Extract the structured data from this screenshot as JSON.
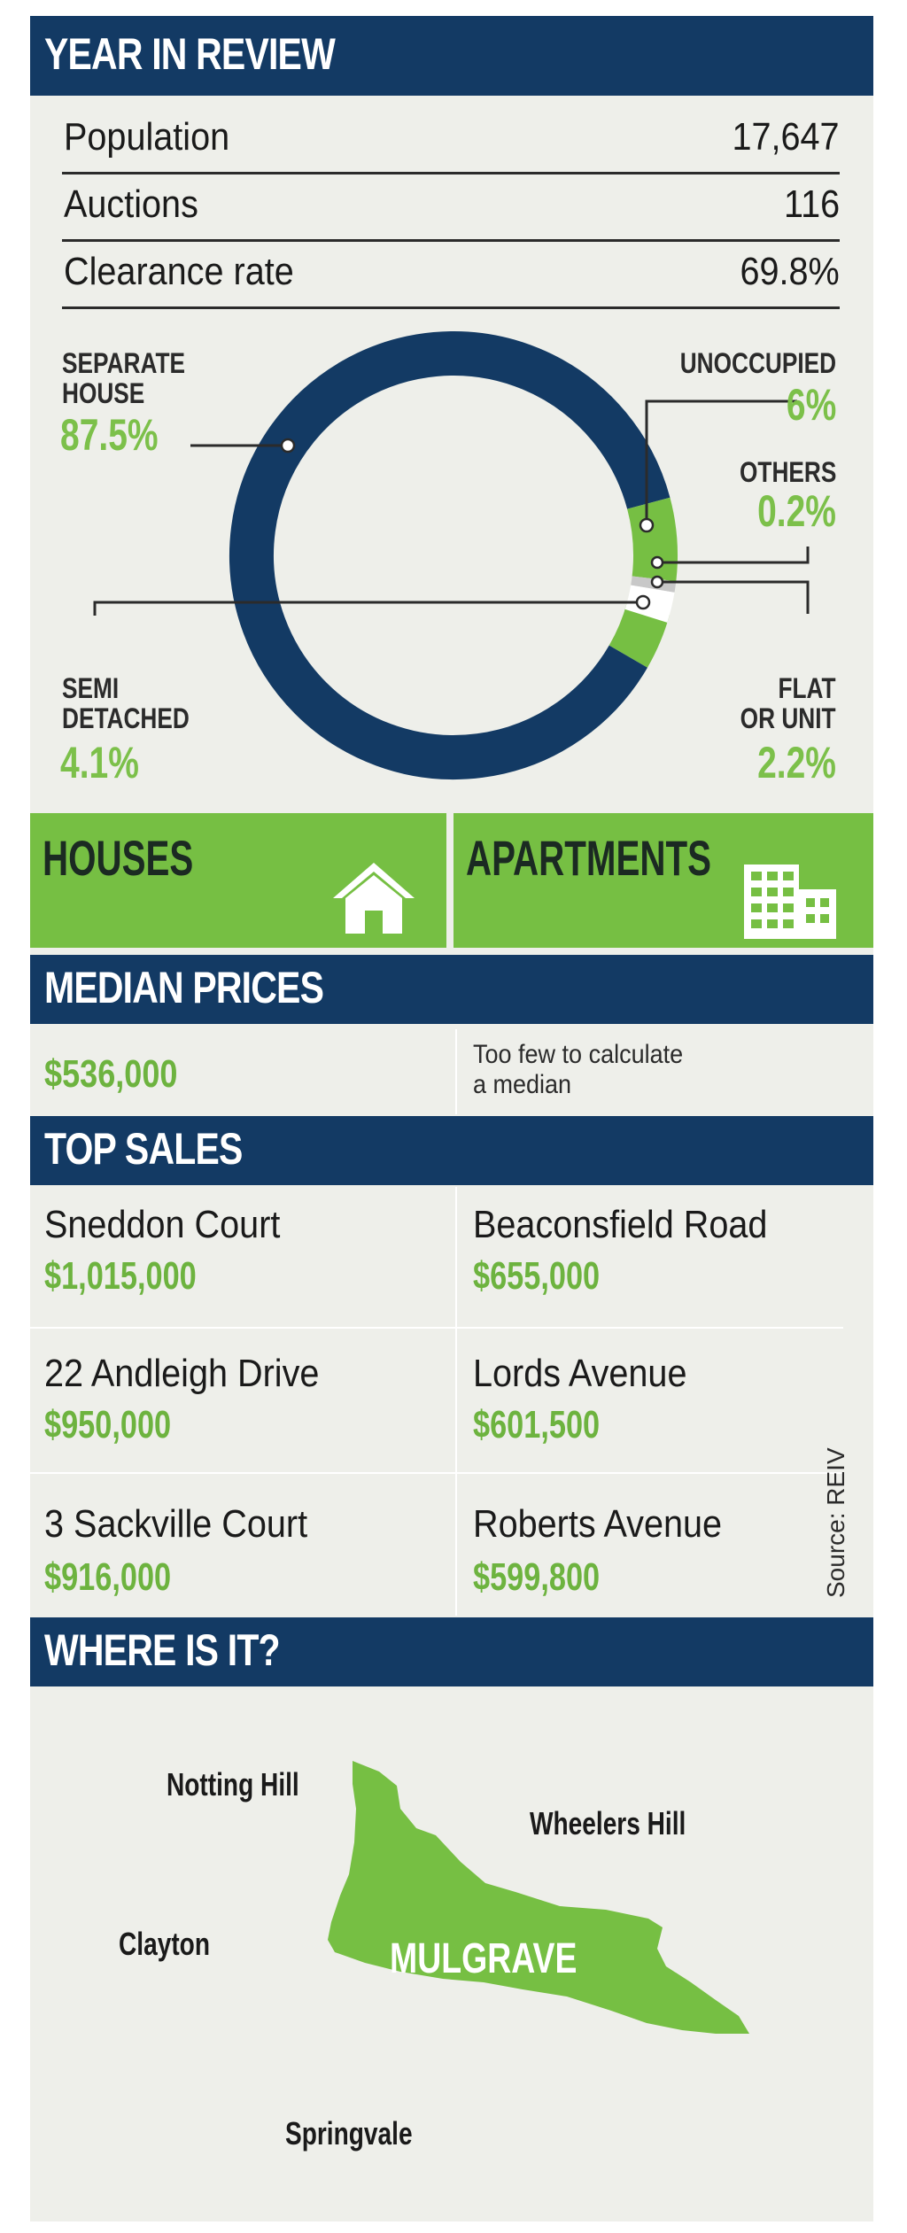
{
  "year_in_review": {
    "title": "YEAR IN REVIEW",
    "stats": [
      {
        "label": "Population",
        "value": "17,647"
      },
      {
        "label": "Auctions",
        "value": "116"
      },
      {
        "label": "Clearance rate",
        "value": "69.8%"
      }
    ]
  },
  "dwelling_chart": {
    "type": "pie",
    "segments": [
      {
        "label_lines": [
          "SEPARATE",
          "HOUSE"
        ],
        "pct_text": "87.5%",
        "value": 87.5,
        "color": "#133a64"
      },
      {
        "label_lines": [
          "UNOCCUPIED"
        ],
        "pct_text": "6%",
        "value": 6,
        "color": "#76bf43"
      },
      {
        "label_lines": [
          "OTHERS"
        ],
        "pct_text": "0.2%",
        "value": 0.2,
        "color": "#c8c8c8"
      },
      {
        "label_lines": [
          "FLAT",
          "OR UNIT"
        ],
        "pct_text": "2.2%",
        "value": 2.2,
        "color": "#ffffff"
      },
      {
        "label_lines": [
          "SEMI",
          "DETACHED"
        ],
        "pct_text": "4.1%",
        "value": 4.1,
        "color": "#76bf43"
      }
    ]
  },
  "categories": {
    "houses": "HOUSES",
    "apartments": "APARTMENTS"
  },
  "median_prices": {
    "title": "MEDIAN PRICES",
    "houses": "$536,000",
    "apartments_line1": "Too few to calculate",
    "apartments_line2": "a median"
  },
  "top_sales": {
    "title": "TOP SALES",
    "houses": [
      {
        "address": "Sneddon Court",
        "price": "$1,015,000"
      },
      {
        "address": "22 Andleigh Drive",
        "price": "$950,000"
      },
      {
        "address": "3 Sackville Court",
        "price": "$916,000"
      }
    ],
    "apartments": [
      {
        "address": "Beaconsfield Road",
        "price": "$655,000"
      },
      {
        "address": "Lords Avenue",
        "price": "$601,500"
      },
      {
        "address": "Roberts Avenue",
        "price": "$599,800"
      }
    ],
    "source": "Source: REIV"
  },
  "where_is_it": {
    "title": "WHERE IS IT?",
    "suburb": "MULGRAVE",
    "neighbours": {
      "north_west": "Notting Hill",
      "north_east": "Wheelers Hill",
      "west": "Clayton",
      "south": "Springvale"
    }
  },
  "colors": {
    "navy": "#133a64",
    "green": "#76bf43",
    "green_text": "#6db33f",
    "panel": "#eeefea"
  }
}
